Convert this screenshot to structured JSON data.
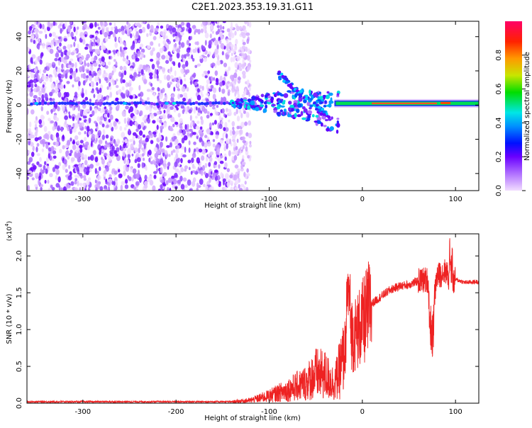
{
  "title": "C2E1.2023.353.19.31.G11",
  "colors": {
    "snr_line": "#ee2222",
    "spectrogram_strong": "#1133ff",
    "spectrogram_weak": "#cc99ff",
    "colorbar": [
      "#f2ddff",
      "#b070ff",
      "#6a00ff",
      "#0010ff",
      "#0090ff",
      "#00e6e6",
      "#00dd00",
      "#c8e600",
      "#ff9900",
      "#ff2200",
      "#ff0066"
    ]
  },
  "chart_data": [
    {
      "type": "heatmap",
      "title": "C2E1.2023.353.19.31.G11",
      "xlabel": "Height of straight line (km)",
      "ylabel": "Frequency (Hz)",
      "xlim": [
        -360,
        125
      ],
      "ylim": [
        -50,
        49
      ],
      "x_ticks": [
        -300,
        -200,
        -100,
        0,
        100
      ],
      "y_ticks": [
        -40,
        -20,
        0,
        20,
        40
      ],
      "colorbar": {
        "label": "Normalized spectral amplitude",
        "range": [
          0,
          1
        ],
        "ticks": [
          "0.0",
          "0.2",
          "0.4",
          "0.6",
          "0.8"
        ]
      },
      "features": {
        "broadband_scatter_range_km": [
          -360,
          -130
        ],
        "carrier_line_frequency_hz": 1,
        "strong_carrier_range_km": [
          -30,
          125
        ]
      }
    },
    {
      "type": "line",
      "xlabel": "Height of straight line (km)",
      "ylabel": "SNR (10 * v/v)",
      "scale_label": "(x10",
      "scale_exponent": "4",
      "scale_suffix": ")",
      "xlim": [
        -360,
        125
      ],
      "ylim": [
        0,
        23000
      ],
      "x_ticks": [
        -300,
        -200,
        -100,
        0,
        100
      ],
      "y_ticks": [
        "0.0",
        "0.5",
        "1.0",
        "1.5",
        "2.0"
      ],
      "series": [
        {
          "x": [
            -360,
            -140,
            -120,
            -100,
            -80,
            -60,
            -50,
            -40,
            -30,
            -20,
            -15,
            -10,
            0,
            10,
            20,
            30,
            40,
            50,
            60,
            70,
            75,
            80,
            90,
            95,
            100,
            110,
            125
          ],
          "y": [
            200,
            200,
            400,
            1000,
            1800,
            2800,
            4000,
            3800,
            2600,
            6000,
            12000,
            9000,
            10800,
            13500,
            14500,
            15400,
            15900,
            16100,
            16600,
            16800,
            12000,
            17200,
            18000,
            16000,
            16800,
            16400,
            16500
          ]
        }
      ]
    }
  ]
}
